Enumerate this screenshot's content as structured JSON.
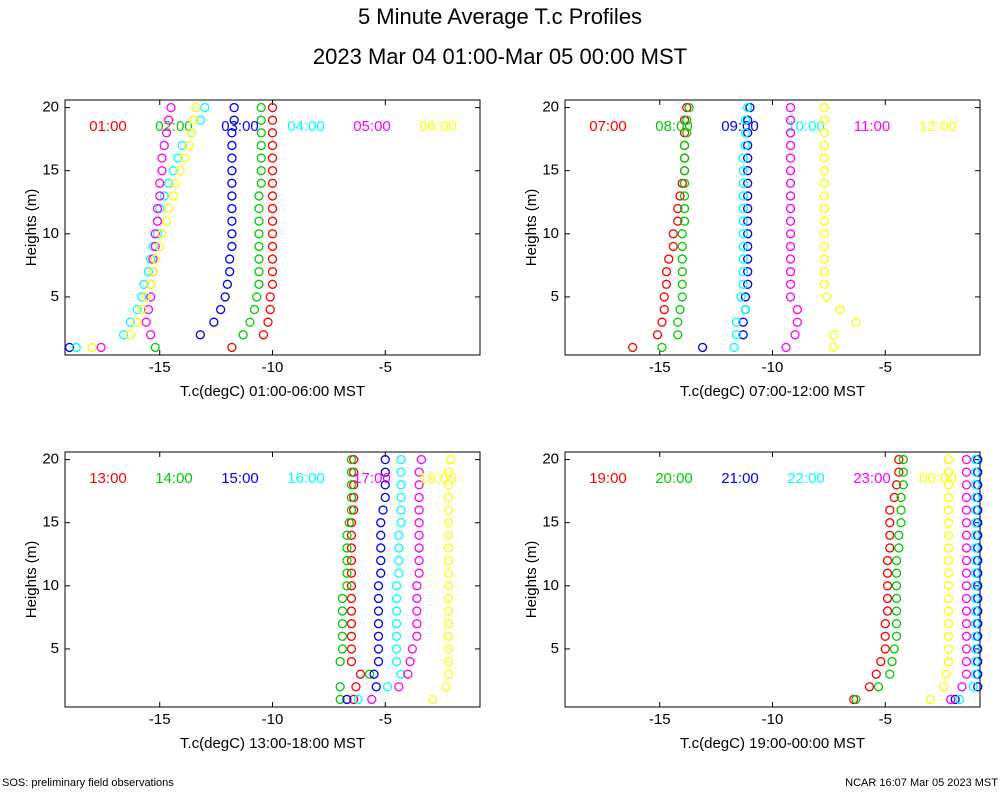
{
  "page": {
    "title": "5 Minute Average T.c Profiles",
    "subtitle": "2023 Mar 04 01:00-Mar 05 00:00 MST",
    "footer_left": "SOS: preliminary field observations",
    "footer_right": "NCAR 16:07 Mar 05 2023 MST"
  },
  "chart_data": [
    {
      "type": "scatter",
      "x_label": "T.c(degC) 01:00-06:00 MST",
      "y_label": "Heights (m)",
      "xlim": [
        -19.2,
        -0.8
      ],
      "ylim": [
        0.4,
        20.6
      ],
      "xticks": [
        -15,
        -10,
        -5
      ],
      "yticks": [
        5,
        10,
        15,
        20
      ],
      "y": [
        1,
        2,
        3,
        4,
        5,
        6,
        7,
        8,
        9,
        10,
        11,
        12,
        13,
        14,
        15,
        16,
        17,
        18,
        19,
        20
      ],
      "series": [
        {
          "name": "01:00",
          "color": "#ff0000",
          "x": [
            -11.8,
            -10.4,
            -10.2,
            -10.1,
            -10.1,
            -10.0,
            -10.0,
            -10.0,
            -10.0,
            -10.0,
            -10.0,
            -10.0,
            -10.0,
            -10.0,
            -10.0,
            -10.0,
            -10.0,
            -10.0,
            -10.0,
            -10.0
          ]
        },
        {
          "name": "02:00",
          "color": "#00cc00",
          "x": [
            -15.2,
            -11.3,
            -11.0,
            -10.8,
            -10.7,
            -10.6,
            -10.6,
            -10.6,
            -10.6,
            -10.6,
            -10.6,
            -10.6,
            -10.6,
            -10.5,
            -10.5,
            -10.5,
            -10.5,
            -10.5,
            -10.5,
            -10.5
          ]
        },
        {
          "name": "03:00",
          "color": "#0000ff",
          "x": [
            -19.0,
            -13.2,
            -12.6,
            -12.3,
            -12.1,
            -12.0,
            -11.9,
            -11.9,
            -11.8,
            -11.8,
            -11.8,
            -11.8,
            -11.8,
            -11.8,
            -11.8,
            -11.8,
            -11.8,
            -11.8,
            -11.7,
            -11.7
          ]
        },
        {
          "name": "04:00",
          "color": "#00ffff",
          "x": [
            -18.7,
            -16.6,
            -16.3,
            -16.0,
            -15.8,
            -15.7,
            -15.5,
            -15.4,
            -15.3,
            -15.1,
            -15.1,
            -15.0,
            -14.8,
            -14.6,
            -14.4,
            -14.2,
            -14.0,
            -13.6,
            -13.2,
            -13.0
          ]
        },
        {
          "name": "05:00",
          "color": "#ff00ff",
          "x": [
            -17.6,
            -15.4,
            -15.6,
            -15.5,
            -15.4,
            -15.4,
            -15.3,
            -15.3,
            -15.2,
            -15.2,
            -15.1,
            -15.1,
            -15.0,
            -15.0,
            -14.9,
            -14.9,
            -14.8,
            -14.7,
            -14.6,
            -14.5
          ]
        },
        {
          "name": "06:00",
          "color": "#ffff00",
          "x": [
            -18.0,
            -16.3,
            -16.0,
            -15.8,
            -15.6,
            -15.4,
            -15.3,
            -15.2,
            -15.0,
            -14.9,
            -14.7,
            -14.6,
            -14.4,
            -14.3,
            -14.1,
            -13.9,
            -13.7,
            -13.6,
            -13.5,
            -13.4
          ]
        }
      ]
    },
    {
      "type": "scatter",
      "x_label": "T.c(degC) 07:00-12:00 MST",
      "y_label": "Heights (m)",
      "xlim": [
        -19.2,
        -0.8
      ],
      "ylim": [
        0.4,
        20.6
      ],
      "xticks": [
        -15,
        -10,
        -5
      ],
      "yticks": [
        5,
        10,
        15,
        20
      ],
      "y": [
        1,
        2,
        3,
        4,
        5,
        6,
        7,
        8,
        9,
        10,
        11,
        12,
        13,
        14,
        15,
        16,
        17,
        18,
        19,
        20
      ],
      "series": [
        {
          "name": "07:00",
          "color": "#ff0000",
          "x": [
            -16.2,
            -15.1,
            -14.9,
            -14.8,
            -14.8,
            -14.7,
            -14.7,
            -14.6,
            -14.4,
            -14.4,
            -14.2,
            -14.2,
            -14.1,
            -14.0,
            -13.9,
            -13.9,
            -13.9,
            -13.9,
            -13.9,
            -13.8
          ]
        },
        {
          "name": "08:00",
          "color": "#00cc00",
          "x": [
            -14.9,
            -14.2,
            -14.2,
            -14.1,
            -14.0,
            -14.0,
            -14.0,
            -14.0,
            -14.0,
            -14.0,
            -13.9,
            -13.9,
            -13.9,
            -13.9,
            -13.9,
            -13.9,
            -13.9,
            -13.8,
            -13.8,
            -13.7
          ]
        },
        {
          "name": "09:00",
          "color": "#0000ff",
          "x": [
            -13.1,
            -11.3,
            -11.3,
            -11.2,
            -11.2,
            -11.1,
            -11.1,
            -11.1,
            -11.1,
            -11.1,
            -11.1,
            -11.1,
            -11.1,
            -11.1,
            -11.1,
            -11.1,
            -11.1,
            -11.1,
            -11.1,
            -11.0
          ]
        },
        {
          "name": "10:00",
          "color": "#00ffff",
          "x": [
            -11.7,
            -11.6,
            -11.6,
            -11.2,
            -11.4,
            -11.3,
            -11.3,
            -11.3,
            -11.3,
            -11.3,
            -11.3,
            -11.3,
            -11.3,
            -11.3,
            -11.3,
            -11.3,
            -11.2,
            -11.2,
            -11.2,
            -11.1
          ]
        },
        {
          "name": "11:00",
          "color": "#ff00ff",
          "x": [
            -9.4,
            -9.0,
            -8.9,
            -8.9,
            -9.2,
            -9.2,
            -9.2,
            -9.2,
            -9.2,
            -9.2,
            -9.2,
            -9.2,
            -9.2,
            -9.2,
            -9.2,
            -9.2,
            -9.2,
            -9.2,
            -9.2,
            -9.2
          ]
        },
        {
          "name": "12:00",
          "color": "#ffff00",
          "x": [
            -7.3,
            -7.3,
            -6.3,
            -7.0,
            -7.6,
            -7.7,
            -7.7,
            -7.7,
            -7.7,
            -7.7,
            -7.7,
            -7.7,
            -7.7,
            -7.7,
            -7.7,
            -7.7,
            -7.7,
            -7.7,
            -7.7,
            -7.7
          ]
        }
      ]
    },
    {
      "type": "scatter",
      "x_label": "T.c(degC) 13:00-18:00 MST",
      "y_label": "Heights (m)",
      "xlim": [
        -19.2,
        -0.8
      ],
      "ylim": [
        0.4,
        20.6
      ],
      "xticks": [
        -15,
        -10,
        -5
      ],
      "yticks": [
        5,
        10,
        15,
        20
      ],
      "y": [
        1,
        2,
        3,
        4,
        5,
        6,
        7,
        8,
        9,
        10,
        11,
        12,
        13,
        14,
        15,
        16,
        17,
        18,
        19,
        20
      ],
      "series": [
        {
          "name": "13:00",
          "color": "#ff0000",
          "x": [
            -6.4,
            -6.3,
            -6.1,
            -6.5,
            -6.5,
            -6.5,
            -6.5,
            -6.5,
            -6.5,
            -6.5,
            -6.5,
            -6.5,
            -6.5,
            -6.5,
            -6.5,
            -6.4,
            -6.4,
            -6.4,
            -6.4,
            -6.4
          ]
        },
        {
          "name": "14:00",
          "color": "#00cc00",
          "x": [
            -7.0,
            -7.0,
            -5.7,
            -7.0,
            -6.9,
            -6.9,
            -6.9,
            -6.9,
            -6.9,
            -6.7,
            -6.7,
            -6.7,
            -6.7,
            -6.7,
            -6.6,
            -6.5,
            -6.5,
            -6.5,
            -6.5,
            -6.5
          ]
        },
        {
          "name": "15:00",
          "color": "#0000ff",
          "x": [
            -6.7,
            -5.4,
            -5.5,
            -5.3,
            -5.3,
            -5.3,
            -5.3,
            -5.3,
            -5.3,
            -5.3,
            -5.2,
            -5.2,
            -5.2,
            -5.2,
            -5.2,
            -5.1,
            -5.0,
            -5.0,
            -5.0,
            -5.0
          ]
        },
        {
          "name": "16:00",
          "color": "#00ffff",
          "x": [
            -6.2,
            -4.9,
            -4.3,
            -4.5,
            -4.5,
            -4.5,
            -4.5,
            -4.5,
            -4.5,
            -4.5,
            -4.4,
            -4.4,
            -4.4,
            -4.4,
            -4.3,
            -4.3,
            -4.3,
            -4.3,
            -4.3,
            -4.3
          ]
        },
        {
          "name": "17:00",
          "color": "#ff00ff",
          "x": [
            -5.6,
            -4.4,
            -4.0,
            -3.9,
            -3.8,
            -3.6,
            -3.6,
            -3.6,
            -3.6,
            -3.6,
            -3.5,
            -3.5,
            -3.5,
            -3.5,
            -3.5,
            -3.5,
            -3.5,
            -3.5,
            -3.5,
            -3.4
          ]
        },
        {
          "name": "18:00",
          "color": "#ffff00",
          "x": [
            -2.9,
            -2.3,
            -2.2,
            -2.2,
            -2.2,
            -2.2,
            -2.2,
            -2.2,
            -2.2,
            -2.2,
            -2.2,
            -2.2,
            -2.2,
            -2.2,
            -2.2,
            -2.2,
            -2.2,
            -2.2,
            -2.2,
            -2.1
          ]
        }
      ]
    },
    {
      "type": "scatter",
      "x_label": "T.c(degC) 19:00-00:00 MST",
      "y_label": "Heights (m)",
      "xlim": [
        -19.2,
        -0.8
      ],
      "ylim": [
        0.4,
        20.6
      ],
      "xticks": [
        -15,
        -10,
        -5
      ],
      "yticks": [
        5,
        10,
        15,
        20
      ],
      "y": [
        1,
        2,
        3,
        4,
        5,
        6,
        7,
        8,
        9,
        10,
        11,
        12,
        13,
        14,
        15,
        16,
        17,
        18,
        19,
        20
      ],
      "series": [
        {
          "name": "19:00",
          "color": "#ff0000",
          "x": [
            -6.4,
            -5.7,
            -5.4,
            -5.2,
            -5.0,
            -5.0,
            -5.0,
            -4.9,
            -4.9,
            -4.9,
            -4.9,
            -4.9,
            -4.8,
            -4.8,
            -4.8,
            -4.8,
            -4.6,
            -4.5,
            -4.4,
            -4.4
          ]
        },
        {
          "name": "20:00",
          "color": "#00cc00",
          "x": [
            -6.3,
            -5.3,
            -4.8,
            -4.7,
            -4.6,
            -4.5,
            -4.5,
            -4.5,
            -4.5,
            -4.5,
            -4.5,
            -4.5,
            -4.4,
            -4.4,
            -4.3,
            -4.3,
            -4.3,
            -4.2,
            -4.2,
            -4.2
          ]
        },
        {
          "name": "21:00",
          "color": "#0000ff",
          "x": [
            -1.9,
            -0.9,
            -0.9,
            -0.9,
            -0.9,
            -0.9,
            -0.9,
            -0.9,
            -0.9,
            -0.9,
            -0.9,
            -0.9,
            -0.9,
            -0.9,
            -0.9,
            -0.9,
            -0.9,
            -0.9,
            -0.9,
            -0.9
          ]
        },
        {
          "name": "22:00",
          "color": "#00ffff",
          "x": [
            -1.7,
            -1.1,
            -1.0,
            -1.0,
            -1.0,
            -1.0,
            -1.0,
            -1.0,
            -1.0,
            -1.0,
            -1.0,
            -1.0,
            -1.0,
            -1.0,
            -1.0,
            -1.0,
            -1.0,
            -1.0,
            -1.0,
            -1.0
          ]
        },
        {
          "name": "23:00",
          "color": "#ff00ff",
          "x": [
            -2.1,
            -1.6,
            -1.4,
            -1.4,
            -1.4,
            -1.4,
            -1.4,
            -1.4,
            -1.4,
            -1.4,
            -1.4,
            -1.4,
            -1.4,
            -1.4,
            -1.4,
            -1.4,
            -1.4,
            -1.4,
            -1.4,
            -1.4
          ]
        },
        {
          "name": "00:00",
          "color": "#ffff00",
          "x": [
            -3.0,
            -2.4,
            -2.3,
            -2.2,
            -2.2,
            -2.2,
            -2.2,
            -2.2,
            -2.2,
            -2.2,
            -2.2,
            -2.2,
            -2.2,
            -2.2,
            -2.2,
            -2.2,
            -2.2,
            -2.2,
            -2.2,
            -2.2
          ]
        }
      ]
    }
  ]
}
